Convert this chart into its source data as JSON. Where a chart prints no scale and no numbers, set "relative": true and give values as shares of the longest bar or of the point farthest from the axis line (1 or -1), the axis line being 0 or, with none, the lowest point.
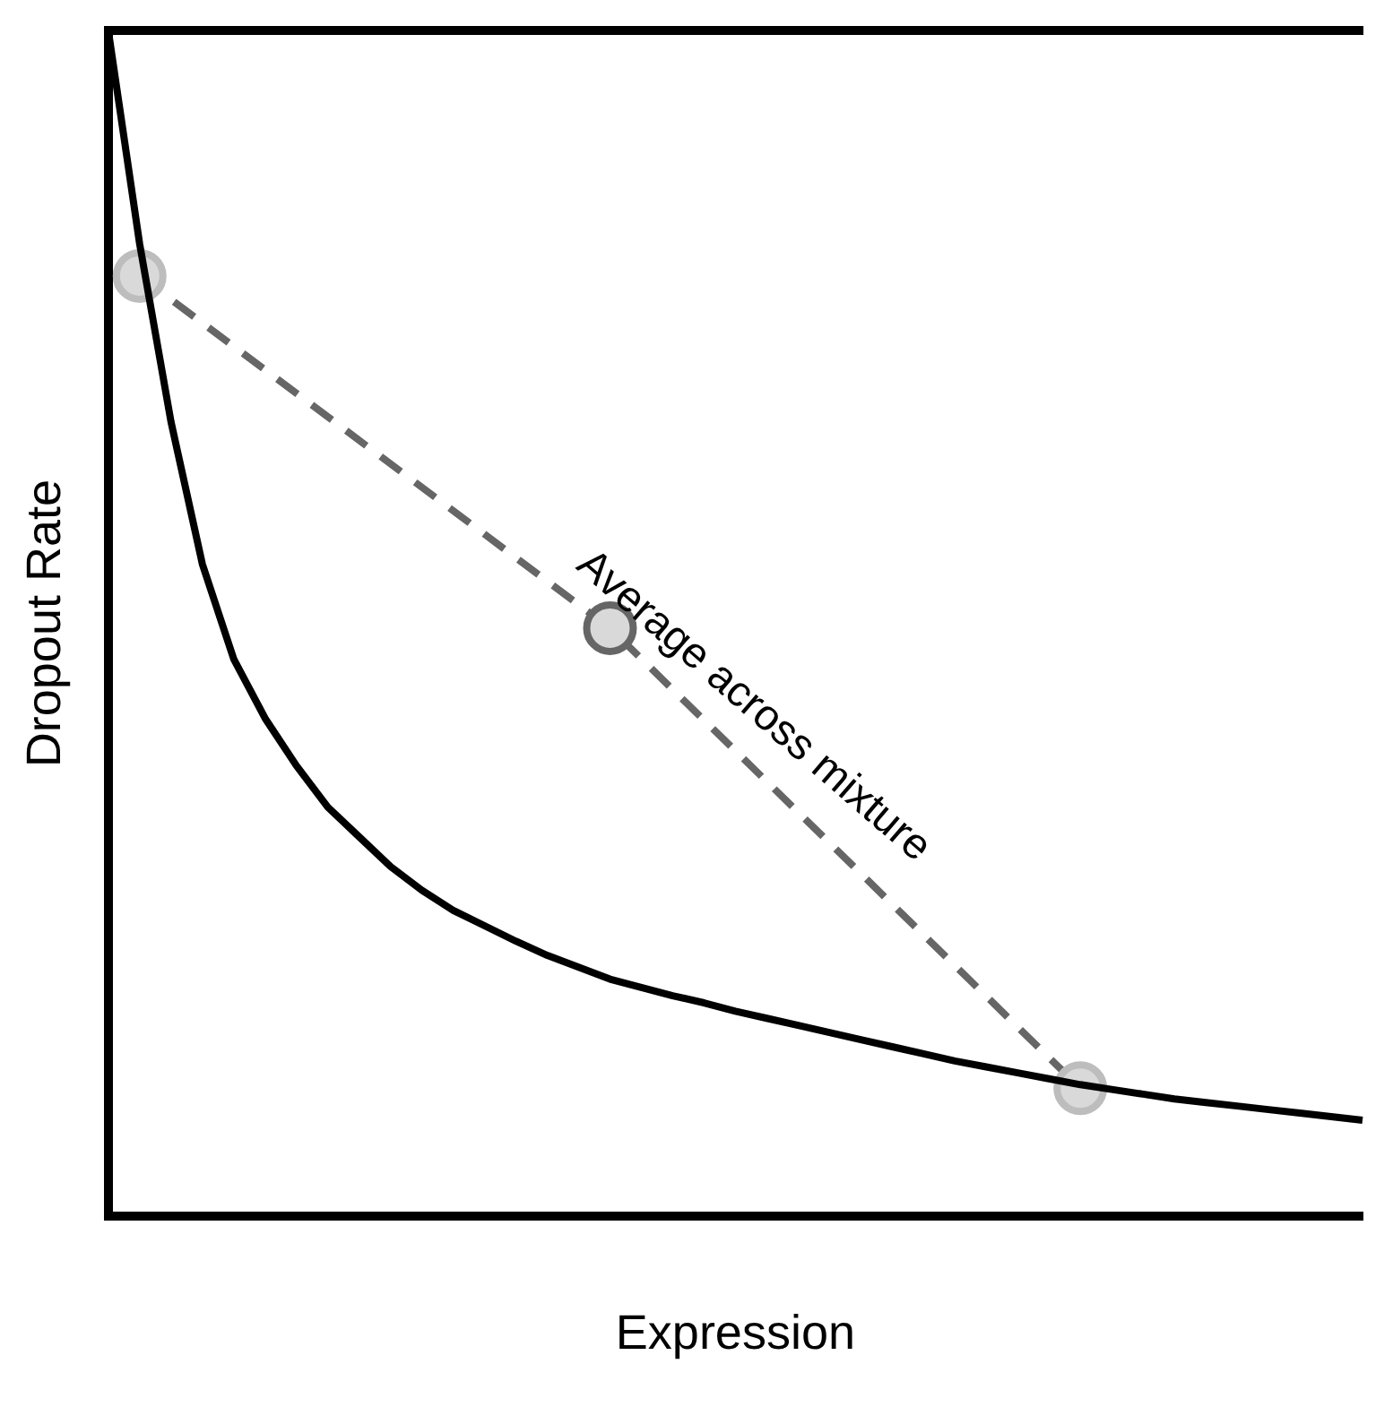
{
  "chart_data": {
    "type": "line",
    "relative": true,
    "xlabel": "Expression",
    "ylabel": "Dropout Rate",
    "grid": false,
    "legend": false,
    "categories": [
      null,
      null,
      null,
      null,
      null,
      null,
      null,
      null,
      null,
      null,
      null,
      null,
      null,
      null,
      null,
      null,
      null,
      null,
      null,
      null,
      null,
      null,
      null,
      null,
      null,
      null,
      null,
      null,
      null,
      null,
      null,
      null,
      null,
      null,
      null,
      null,
      null,
      null,
      null,
      null,
      null
    ],
    "annotations": [
      "Average across mixture"
    ],
    "series": [
      {
        "color": "#000000",
        "marker": "none",
        "line_style": "solid",
        "values": [
          1,
          0.82,
          0.67,
          0.55,
          0.47,
          0.42,
          0.38,
          0.345,
          0.32,
          0.295,
          0.275,
          0.258,
          0.245,
          0.232,
          0.22,
          0.21,
          0.2,
          0.193,
          0.186,
          0.18,
          0.173,
          0.167,
          0.161,
          0.155,
          0.149,
          0.143,
          0.137,
          0.131,
          0.126,
          0.121,
          0.116,
          0.111,
          0.107,
          0.103,
          0.099,
          0.096,
          0.093,
          0.09,
          0.087,
          0.084,
          0.081
        ]
      },
      {
        "color": "#666666",
        "marker": "circle",
        "line_style": "dashed",
        "colors": [
          null,
          "#bdbdbd",
          null,
          null,
          null,
          null,
          null,
          null,
          null,
          null,
          null,
          null,
          null,
          null,
          null,
          null,
          "#666666",
          null,
          null,
          null,
          null,
          null,
          null,
          null,
          null,
          null,
          null,
          null,
          null,
          null,
          null,
          "#bdbdbd",
          null,
          null,
          null,
          null,
          null,
          null,
          null,
          null,
          null
        ],
        "values": [
          null,
          0.793,
          null,
          null,
          null,
          null,
          null,
          null,
          null,
          null,
          null,
          null,
          null,
          null,
          null,
          null,
          0.496,
          null,
          null,
          null,
          null,
          null,
          null,
          null,
          null,
          null,
          null,
          null,
          null,
          null,
          null,
          0.108,
          null,
          null,
          null,
          null,
          null,
          null,
          null,
          null,
          null
        ]
      }
    ]
  }
}
